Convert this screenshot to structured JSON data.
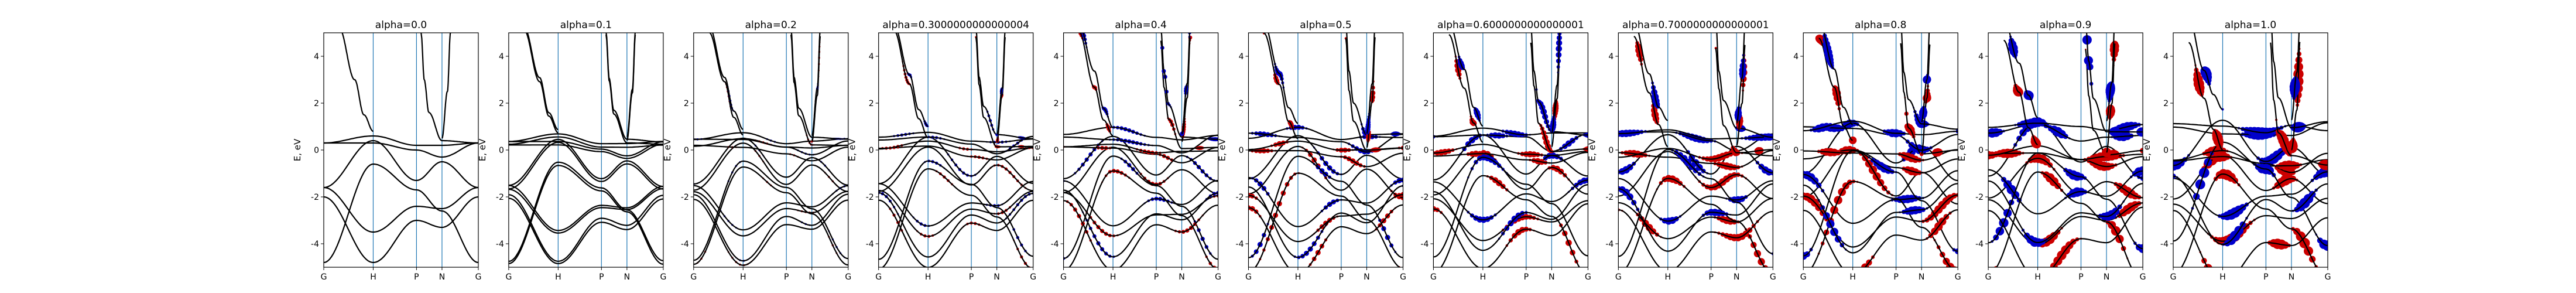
{
  "chart_data": {
    "type": "line",
    "subplot_titles": [
      "alpha=0.0",
      "alpha=0.1",
      "alpha=0.2",
      "alpha=0.3000000000000004",
      "alpha=0.4",
      "alpha=0.5",
      "alpha=0.6000000000000001",
      "alpha=0.7000000000000001",
      "alpha=0.8",
      "alpha=0.9",
      "alpha=1.0"
    ],
    "alphas": [
      0.0,
      0.1,
      0.2,
      0.3,
      0.4,
      0.5,
      0.6,
      0.7,
      0.8,
      0.9,
      1.0
    ],
    "ylabel": "E, eV",
    "ylim": [
      -5,
      5
    ],
    "yticks": [
      -4,
      -2,
      0,
      2,
      4
    ],
    "kpoints": [
      {
        "label": "G",
        "pos": 0.0
      },
      {
        "label": "H",
        "pos": 0.32
      },
      {
        "label": "P",
        "pos": 0.6
      },
      {
        "label": "N",
        "pos": 0.765
      },
      {
        "label": "G",
        "pos": 1.0
      }
    ],
    "grid": false,
    "colors": {
      "band": "#000000",
      "weight_a": "#cc0000",
      "weight_b": "#0000cc",
      "kline": "#1f77b4"
    },
    "bands_alpha0": [
      {
        "k": [
          0.0,
          0.32,
          0.6,
          0.765,
          1.0
        ],
        "E": [
          -1.6,
          0.4,
          -1.3,
          -0.5,
          -1.6
        ]
      },
      {
        "k": [
          0.0,
          0.32,
          0.6,
          0.765,
          1.0
        ],
        "E": [
          -1.6,
          -3.5,
          -2.4,
          -2.5,
          -1.6
        ]
      },
      {
        "k": [
          0.0,
          0.32,
          0.6,
          0.765,
          1.0
        ],
        "E": [
          0.3,
          0.3,
          0.0,
          -0.3,
          0.3
        ]
      },
      {
        "k": [
          0.0,
          0.32,
          0.6,
          0.765,
          1.0
        ],
        "E": [
          0.3,
          0.6,
          0.2,
          0.2,
          0.3
        ]
      },
      {
        "k": [
          0.0,
          0.32,
          0.6,
          0.765,
          1.0
        ],
        "E": [
          -4.8,
          -0.6,
          -1.7,
          -2.6,
          -4.8
        ]
      },
      {
        "k": [
          0.0,
          0.32,
          0.6,
          0.765,
          1.0
        ],
        "E": [
          -2.0,
          -4.8,
          -3.0,
          -3.3,
          -2.0
        ]
      },
      {
        "k": [
          0.1,
          0.2,
          0.26,
          0.32
        ],
        "E": [
          5.2,
          3.0,
          1.5,
          0.8
        ]
      },
      {
        "k": [
          0.63,
          0.65,
          0.68,
          0.765,
          1.0
        ],
        "E": [
          5.0,
          3.0,
          1.6,
          0.4,
          0.3
        ]
      },
      {
        "k": [
          0.765,
          0.8,
          0.82
        ],
        "E": [
          0.5,
          2.5,
          5.0
        ]
      }
    ]
  }
}
